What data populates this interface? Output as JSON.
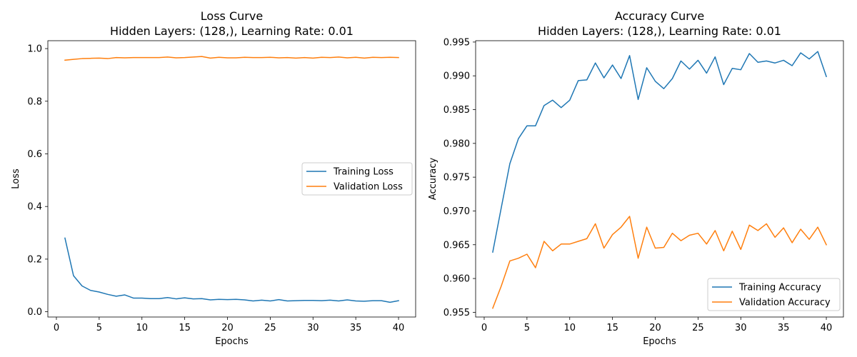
{
  "chart_data": [
    {
      "type": "line",
      "title": "Loss Curve",
      "subtitle": "Hidden Layers: (128,), Learning Rate: 0.01",
      "xlabel": "Epochs",
      "ylabel": "Loss",
      "xlim": [
        -1,
        42
      ],
      "ylim": [
        -0.02,
        1.03
      ],
      "xticks": [
        "0",
        "5",
        "10",
        "15",
        "20",
        "25",
        "30",
        "35",
        "40"
      ],
      "yticks": [
        "0.0",
        "0.2",
        "0.4",
        "0.6",
        "0.8",
        "1.0"
      ],
      "grid": false,
      "legend_position": "center-right",
      "x": [
        1,
        2,
        3,
        4,
        5,
        6,
        7,
        8,
        9,
        10,
        11,
        12,
        13,
        14,
        15,
        16,
        17,
        18,
        19,
        20,
        21,
        22,
        23,
        24,
        25,
        26,
        27,
        28,
        29,
        30,
        31,
        32,
        33,
        34,
        35,
        36,
        37,
        38,
        39,
        40
      ],
      "series": [
        {
          "name": "Training Loss",
          "color": "#1f77b4",
          "values": [
            0.28,
            0.137,
            0.098,
            0.081,
            0.075,
            0.066,
            0.059,
            0.064,
            0.052,
            0.052,
            0.05,
            0.05,
            0.054,
            0.049,
            0.053,
            0.049,
            0.05,
            0.045,
            0.047,
            0.046,
            0.047,
            0.045,
            0.041,
            0.044,
            0.041,
            0.046,
            0.041,
            0.042,
            0.043,
            0.043,
            0.042,
            0.044,
            0.041,
            0.045,
            0.041,
            0.04,
            0.042,
            0.042,
            0.036,
            0.042
          ]
        },
        {
          "name": "Validation Loss",
          "color": "#ff7f0e",
          "values": [
            0.956,
            0.959,
            0.962,
            0.963,
            0.964,
            0.962,
            0.966,
            0.965,
            0.966,
            0.966,
            0.966,
            0.966,
            0.968,
            0.965,
            0.966,
            0.968,
            0.97,
            0.964,
            0.967,
            0.965,
            0.965,
            0.967,
            0.966,
            0.966,
            0.967,
            0.965,
            0.966,
            0.964,
            0.966,
            0.964,
            0.967,
            0.966,
            0.968,
            0.965,
            0.967,
            0.964,
            0.967,
            0.966,
            0.967,
            0.966
          ]
        }
      ]
    },
    {
      "type": "line",
      "title": "Accuracy Curve",
      "subtitle": "Hidden Layers: (128,), Learning Rate: 0.01",
      "xlabel": "Epochs",
      "ylabel": "Accuracy",
      "xlim": [
        -1,
        42
      ],
      "ylim": [
        0.9543,
        0.9952
      ],
      "xticks": [
        "0",
        "5",
        "10",
        "15",
        "20",
        "25",
        "30",
        "35",
        "40"
      ],
      "yticks": [
        "0.955",
        "0.960",
        "0.965",
        "0.970",
        "0.975",
        "0.980",
        "0.985",
        "0.990",
        "0.995"
      ],
      "grid": false,
      "legend_position": "bottom-right",
      "x": [
        1,
        2,
        3,
        4,
        5,
        6,
        7,
        8,
        9,
        10,
        11,
        12,
        13,
        14,
        15,
        16,
        17,
        18,
        19,
        20,
        21,
        22,
        23,
        24,
        25,
        26,
        27,
        28,
        29,
        30,
        31,
        32,
        33,
        34,
        35,
        36,
        37,
        38,
        39,
        40
      ],
      "series": [
        {
          "name": "Training Accuracy",
          "color": "#1f77b4",
          "values": [
            0.9639,
            0.9705,
            0.977,
            0.9807,
            0.9826,
            0.9826,
            0.9856,
            0.9864,
            0.9853,
            0.9864,
            0.9893,
            0.9894,
            0.9919,
            0.9897,
            0.9916,
            0.9896,
            0.993,
            0.9865,
            0.9912,
            0.9892,
            0.9881,
            0.9896,
            0.9922,
            0.991,
            0.9923,
            0.9904,
            0.9928,
            0.9887,
            0.9911,
            0.9909,
            0.9933,
            0.992,
            0.9922,
            0.9919,
            0.9923,
            0.9915,
            0.9934,
            0.9925,
            0.9936,
            0.9899
          ]
        },
        {
          "name": "Validation Accuracy",
          "color": "#ff7f0e",
          "values": [
            0.9556,
            0.9589,
            0.9626,
            0.963,
            0.9636,
            0.9616,
            0.9655,
            0.9641,
            0.9651,
            0.9651,
            0.9655,
            0.9659,
            0.9681,
            0.9645,
            0.9665,
            0.9676,
            0.9692,
            0.963,
            0.9676,
            0.9645,
            0.9646,
            0.9667,
            0.9656,
            0.9664,
            0.9667,
            0.9651,
            0.9671,
            0.9641,
            0.967,
            0.9643,
            0.9679,
            0.9671,
            0.9681,
            0.9661,
            0.9675,
            0.9653,
            0.9673,
            0.9658,
            0.9676,
            0.965
          ]
        }
      ]
    }
  ]
}
